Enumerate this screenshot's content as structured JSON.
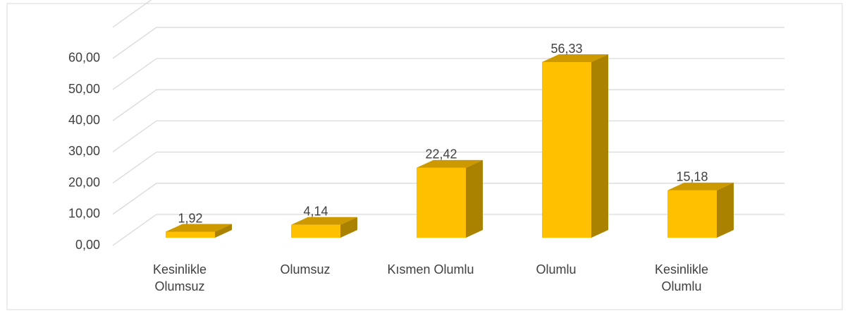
{
  "chart_data": {
    "type": "bar3d",
    "categories": [
      "Kesinlikle Olumsuz",
      "Olumsuz",
      "Kısmen Olumlu",
      "Olumlu",
      "Kesinlikle Olumlu"
    ],
    "values": [
      1.92,
      4.14,
      22.42,
      56.33,
      15.18
    ],
    "value_labels": [
      "1,92",
      "4,14",
      "22,42",
      "56,33",
      "15,18"
    ],
    "color": "#ffc000",
    "ylim": [
      0,
      70
    ],
    "yticks": [
      {
        "value": 0,
        "label": "0,00"
      },
      {
        "value": 10,
        "label": "10,00"
      },
      {
        "value": 20,
        "label": "20,00"
      },
      {
        "value": 30,
        "label": "30,00"
      },
      {
        "value": 40,
        "label": "40,00"
      },
      {
        "value": 50,
        "label": "50,00"
      },
      {
        "value": 60,
        "label": "60,00"
      }
    ],
    "grid": true
  }
}
